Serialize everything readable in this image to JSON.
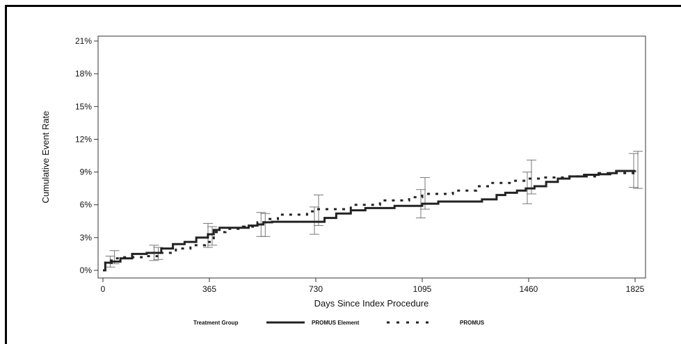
{
  "chart_data": {
    "type": "line",
    "title": "",
    "xlabel": "Days Since Index Procedure",
    "ylabel": "Cumulative Event Rate",
    "xlim": [
      0,
      1825
    ],
    "ylim": [
      0,
      21
    ],
    "xticks": [
      0,
      365,
      730,
      1095,
      1460,
      1825
    ],
    "xtick_labels": [
      "0",
      "365",
      "730",
      "1095",
      "1460",
      "1825"
    ],
    "yticks": [
      0,
      3,
      6,
      9,
      12,
      15,
      18,
      21
    ],
    "ytick_labels": [
      "0%",
      "3%",
      "6%",
      "9%",
      "12%",
      "15%",
      "18%",
      "21%"
    ],
    "grid": false,
    "legend": {
      "title": "Treatment Group",
      "position": "bottom"
    },
    "series": [
      {
        "name": "PROMUS Element",
        "style": "solid",
        "color": "#222222",
        "x": [
          0,
          8,
          30,
          60,
          100,
          150,
          200,
          240,
          280,
          320,
          360,
          380,
          400,
          500,
          530,
          550,
          580,
          730,
          760,
          800,
          850,
          900,
          1000,
          1095,
          1150,
          1200,
          1300,
          1350,
          1380,
          1420,
          1450,
          1480,
          1520,
          1560,
          1600,
          1650,
          1700,
          1740,
          1760,
          1825
        ],
        "y": [
          0,
          0.7,
          0.8,
          1.1,
          1.5,
          1.6,
          2.0,
          2.4,
          2.6,
          3.0,
          3.3,
          3.7,
          3.9,
          4.1,
          4.2,
          4.4,
          4.45,
          4.45,
          4.8,
          5.2,
          5.5,
          5.7,
          5.9,
          6.1,
          6.3,
          6.3,
          6.5,
          6.9,
          7.1,
          7.3,
          7.5,
          7.7,
          8.1,
          8.4,
          8.6,
          8.75,
          8.8,
          8.9,
          9.1,
          9.15
        ]
      },
      {
        "name": "PROMUS",
        "style": "dotted",
        "color": "#222222",
        "x": [
          0,
          8,
          30,
          60,
          150,
          200,
          250,
          300,
          350,
          380,
          420,
          480,
          530,
          560,
          600,
          700,
          730,
          850,
          950,
          1050,
          1095,
          1200,
          1280,
          1330,
          1400,
          1460,
          1500,
          1560,
          1600,
          1700,
          1825
        ],
        "y": [
          0,
          0.9,
          1.1,
          1.2,
          1.3,
          1.6,
          2.0,
          2.3,
          2.6,
          3.5,
          3.8,
          4.0,
          4.4,
          4.7,
          5.1,
          5.4,
          5.6,
          6.0,
          6.4,
          6.7,
          7.0,
          7.3,
          7.7,
          8.0,
          8.2,
          8.4,
          8.5,
          8.5,
          8.6,
          8.9,
          9.2
        ]
      }
    ],
    "error_bars": [
      {
        "series": "PROMUS Element",
        "x": 30,
        "y": 0.7,
        "low": 0.3,
        "high": 1.3
      },
      {
        "series": "PROMUS",
        "x": 30,
        "y": 1.0,
        "low": 0.6,
        "high": 1.8
      },
      {
        "series": "PROMUS Element",
        "x": 180,
        "y": 1.6,
        "low": 0.9,
        "high": 2.3
      },
      {
        "series": "PROMUS",
        "x": 180,
        "y": 1.4,
        "low": 1.0,
        "high": 2.1
      },
      {
        "series": "PROMUS Element",
        "x": 365,
        "y": 3.2,
        "low": 2.1,
        "high": 4.3
      },
      {
        "series": "PROMUS",
        "x": 365,
        "y": 3.0,
        "low": 2.3,
        "high": 4.0
      },
      {
        "series": "PROMUS Element",
        "x": 547,
        "y": 4.3,
        "low": 3.1,
        "high": 5.3
      },
      {
        "series": "PROMUS",
        "x": 547,
        "y": 4.2,
        "low": 3.1,
        "high": 5.2
      },
      {
        "series": "PROMUS Element",
        "x": 730,
        "y": 4.5,
        "low": 3.3,
        "high": 5.8
      },
      {
        "series": "PROMUS",
        "x": 730,
        "y": 5.5,
        "low": 4.1,
        "high": 6.9
      },
      {
        "series": "PROMUS Element",
        "x": 1095,
        "y": 6.1,
        "low": 4.8,
        "high": 7.4
      },
      {
        "series": "PROMUS",
        "x": 1095,
        "y": 7.0,
        "low": 5.6,
        "high": 8.5
      },
      {
        "series": "PROMUS Element",
        "x": 1460,
        "y": 7.5,
        "low": 6.1,
        "high": 9.0
      },
      {
        "series": "PROMUS",
        "x": 1460,
        "y": 8.5,
        "low": 7.0,
        "high": 10.1
      },
      {
        "series": "PROMUS Element",
        "x": 1825,
        "y": 9.1,
        "low": 7.6,
        "high": 10.7
      },
      {
        "series": "PROMUS",
        "x": 1825,
        "y": 9.2,
        "low": 7.5,
        "high": 10.9
      }
    ]
  }
}
